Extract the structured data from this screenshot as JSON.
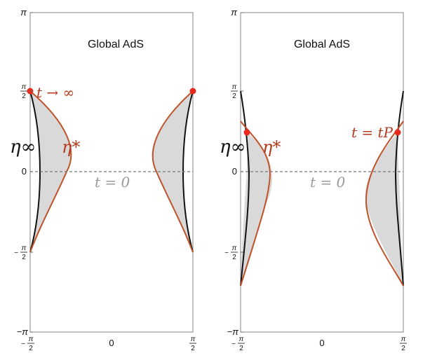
{
  "panels": [
    {
      "title": "Global AdS",
      "y_ticks": [
        "π",
        "π/2",
        "0",
        "−π/2",
        "−π"
      ],
      "x_ticks": [
        "−π/2",
        "0",
        "π/2"
      ],
      "labels": {
        "eta_inf": "η∞",
        "eta_star": "η*",
        "time_label": "t → ∞",
        "t_zero": "t = 0"
      }
    },
    {
      "title": "Global AdS",
      "y_ticks": [
        "π",
        "π/2",
        "0",
        "−π/2",
        "−π"
      ],
      "x_ticks": [
        "−π/2",
        "0",
        "π/2"
      ],
      "labels": {
        "eta_inf": "η∞",
        "eta_star": "η*",
        "time_label": "t = tP",
        "t_zero": "t = 0"
      }
    }
  ],
  "colors": {
    "boundary_curve": "#111111",
    "eta_star_curve": "#c0522a",
    "shade": "#d9d9d9",
    "dot": "#e8291c",
    "dashed": "#777777",
    "t_zero_text": "#9a9a9a"
  }
}
